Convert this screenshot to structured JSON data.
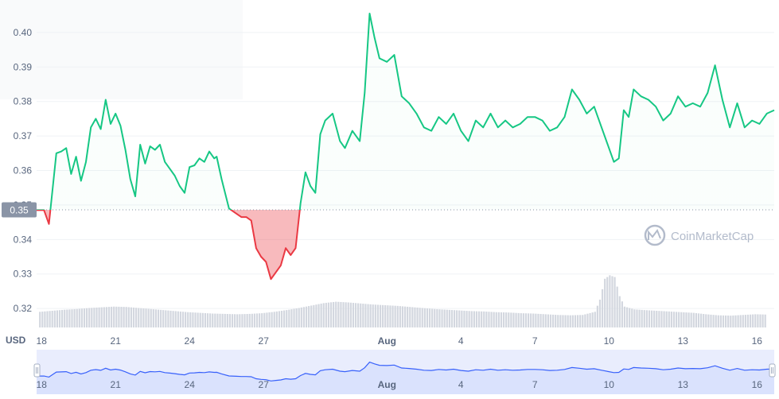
{
  "chart_data": {
    "type": "line",
    "currency_label": "USD",
    "reference_price": 0.3486,
    "reference_label": "0.35",
    "y_ticks": [
      "0.40",
      "0.39",
      "0.38",
      "0.37",
      "0.36",
      "0.35",
      "0.34",
      "0.33",
      "0.32"
    ],
    "y_tick_values": [
      0.4,
      0.39,
      0.38,
      0.37,
      0.36,
      0.35,
      0.34,
      0.33,
      0.32
    ],
    "ylim": [
      0.3145,
      0.4085
    ],
    "x_tick_labels": [
      "18",
      "21",
      "24",
      "27",
      "Aug",
      "4",
      "7",
      "10",
      "13",
      "16"
    ],
    "x_tick_days": [
      0,
      3,
      6,
      9,
      14,
      17,
      20,
      23,
      26,
      29
    ],
    "x_tick_bold": [
      "Aug"
    ],
    "x_range_days": [
      -0.2,
      29.7
    ],
    "x_unit": "days from Jul 18",
    "price_series": {
      "x": [
        -0.2,
        0.1,
        0.3,
        0.6,
        0.8,
        1.0,
        1.2,
        1.4,
        1.6,
        1.8,
        2.0,
        2.2,
        2.4,
        2.6,
        2.8,
        3.0,
        3.2,
        3.4,
        3.6,
        3.8,
        4.0,
        4.2,
        4.4,
        4.6,
        4.8,
        5.0,
        5.2,
        5.4,
        5.6,
        5.8,
        6.0,
        6.2,
        6.4,
        6.6,
        6.8,
        7.0,
        7.1,
        7.3,
        7.6,
        7.9,
        8.1,
        8.3,
        8.5,
        8.7,
        8.9,
        9.1,
        9.3,
        9.5,
        9.7,
        9.9,
        10.1,
        10.3,
        10.5,
        10.7,
        10.9,
        11.1,
        11.3,
        11.5,
        11.8,
        12.1,
        12.3,
        12.6,
        12.9,
        13.1,
        13.3,
        13.5,
        13.7,
        14.0,
        14.3,
        14.6,
        14.9,
        15.2,
        15.5,
        15.8,
        16.1,
        16.4,
        16.7,
        17.0,
        17.3,
        17.6,
        17.9,
        18.2,
        18.5,
        18.8,
        19.1,
        19.4,
        19.7,
        20.0,
        20.3,
        20.6,
        20.9,
        21.2,
        21.5,
        21.8,
        22.1,
        22.4,
        22.7,
        23.0,
        23.2,
        23.4,
        23.6,
        23.8,
        24.0,
        24.3,
        24.6,
        24.9,
        25.2,
        25.5,
        25.8,
        26.1,
        26.4,
        26.7,
        27.0,
        27.3,
        27.6,
        27.9,
        28.2,
        28.5,
        28.8,
        29.1,
        29.4,
        29.7
      ],
      "y": [
        0.3485,
        0.3485,
        0.3445,
        0.365,
        0.3655,
        0.3665,
        0.359,
        0.364,
        0.357,
        0.3625,
        0.3725,
        0.375,
        0.372,
        0.3805,
        0.3735,
        0.3765,
        0.373,
        0.366,
        0.3575,
        0.3525,
        0.3675,
        0.362,
        0.367,
        0.366,
        0.3675,
        0.3625,
        0.3605,
        0.3585,
        0.3555,
        0.3535,
        0.361,
        0.3615,
        0.3635,
        0.3625,
        0.3655,
        0.3635,
        0.364,
        0.3575,
        0.349,
        0.3475,
        0.3465,
        0.3465,
        0.3455,
        0.3375,
        0.335,
        0.3335,
        0.3285,
        0.3305,
        0.3325,
        0.3375,
        0.3355,
        0.3375,
        0.3505,
        0.3595,
        0.3555,
        0.3535,
        0.3705,
        0.3745,
        0.3765,
        0.3685,
        0.3665,
        0.3715,
        0.3685,
        0.3825,
        0.4055,
        0.3985,
        0.3925,
        0.3915,
        0.3935,
        0.3815,
        0.3795,
        0.3765,
        0.3725,
        0.3715,
        0.3755,
        0.3735,
        0.3765,
        0.3715,
        0.3685,
        0.3745,
        0.3725,
        0.3765,
        0.3725,
        0.3745,
        0.3725,
        0.3735,
        0.3755,
        0.3755,
        0.3745,
        0.3715,
        0.3725,
        0.3755,
        0.3835,
        0.3805,
        0.3765,
        0.3785,
        0.3725,
        0.3665,
        0.3625,
        0.3635,
        0.3775,
        0.3755,
        0.3835,
        0.3815,
        0.3805,
        0.3785,
        0.3745,
        0.3765,
        0.3815,
        0.3785,
        0.3795,
        0.3785,
        0.3825,
        0.3905,
        0.3805,
        0.3725,
        0.3795,
        0.3725,
        0.3745,
        0.3735,
        0.3765,
        0.3775
      ],
      "color_above": "#16c784",
      "color_below": "#ea3943"
    },
    "volume_bars": {
      "x": [
        -0.1,
        0.4,
        0.9,
        1.4,
        1.9,
        2.4,
        2.9,
        3.4,
        3.9,
        4.4,
        4.9,
        5.4,
        5.9,
        6.4,
        6.9,
        7.4,
        7.9,
        8.4,
        8.9,
        9.4,
        9.9,
        10.4,
        10.9,
        11.4,
        11.9,
        12.4,
        12.9,
        13.4,
        13.9,
        14.4,
        14.9,
        15.4,
        15.9,
        16.4,
        16.9,
        17.4,
        17.9,
        18.4,
        18.9,
        19.4,
        19.9,
        20.4,
        20.9,
        21.4,
        21.9,
        22.4,
        22.6,
        22.8,
        23.0,
        23.2,
        23.4,
        23.6,
        24.0,
        24.4,
        24.9,
        25.4,
        25.9,
        26.4,
        26.9,
        27.4,
        27.9,
        28.4,
        28.9,
        29.4
      ],
      "values": [
        4.5,
        4.8,
        5.1,
        5.3,
        5.6,
        5.8,
        6.0,
        5.9,
        5.6,
        5.3,
        5.0,
        4.7,
        4.4,
        4.2,
        4.0,
        3.9,
        3.8,
        3.9,
        4.1,
        4.5,
        5.0,
        5.6,
        6.3,
        7.0,
        7.4,
        7.2,
        6.9,
        6.6,
        6.4,
        6.2,
        5.9,
        5.6,
        5.3,
        5.1,
        4.9,
        4.7,
        4.6,
        4.4,
        4.3,
        4.1,
        4.0,
        3.8,
        3.6,
        3.5,
        3.6,
        4.5,
        8.0,
        14.0,
        15.0,
        14.5,
        9.0,
        6.0,
        5.2,
        5.0,
        4.8,
        4.6,
        4.4,
        4.2,
        3.8,
        3.5,
        3.4,
        3.6,
        3.8,
        3.7
      ],
      "max": 16,
      "color": "#d3d7df"
    },
    "navigator": {
      "color": "#3861fb",
      "fill": "#e9edfd",
      "x_tick_labels": [
        "18",
        "21",
        "24",
        "27",
        "Aug",
        "4",
        "7",
        "10",
        "13",
        "16"
      ]
    },
    "watermark": "CoinMarketCap",
    "grid": true
  }
}
